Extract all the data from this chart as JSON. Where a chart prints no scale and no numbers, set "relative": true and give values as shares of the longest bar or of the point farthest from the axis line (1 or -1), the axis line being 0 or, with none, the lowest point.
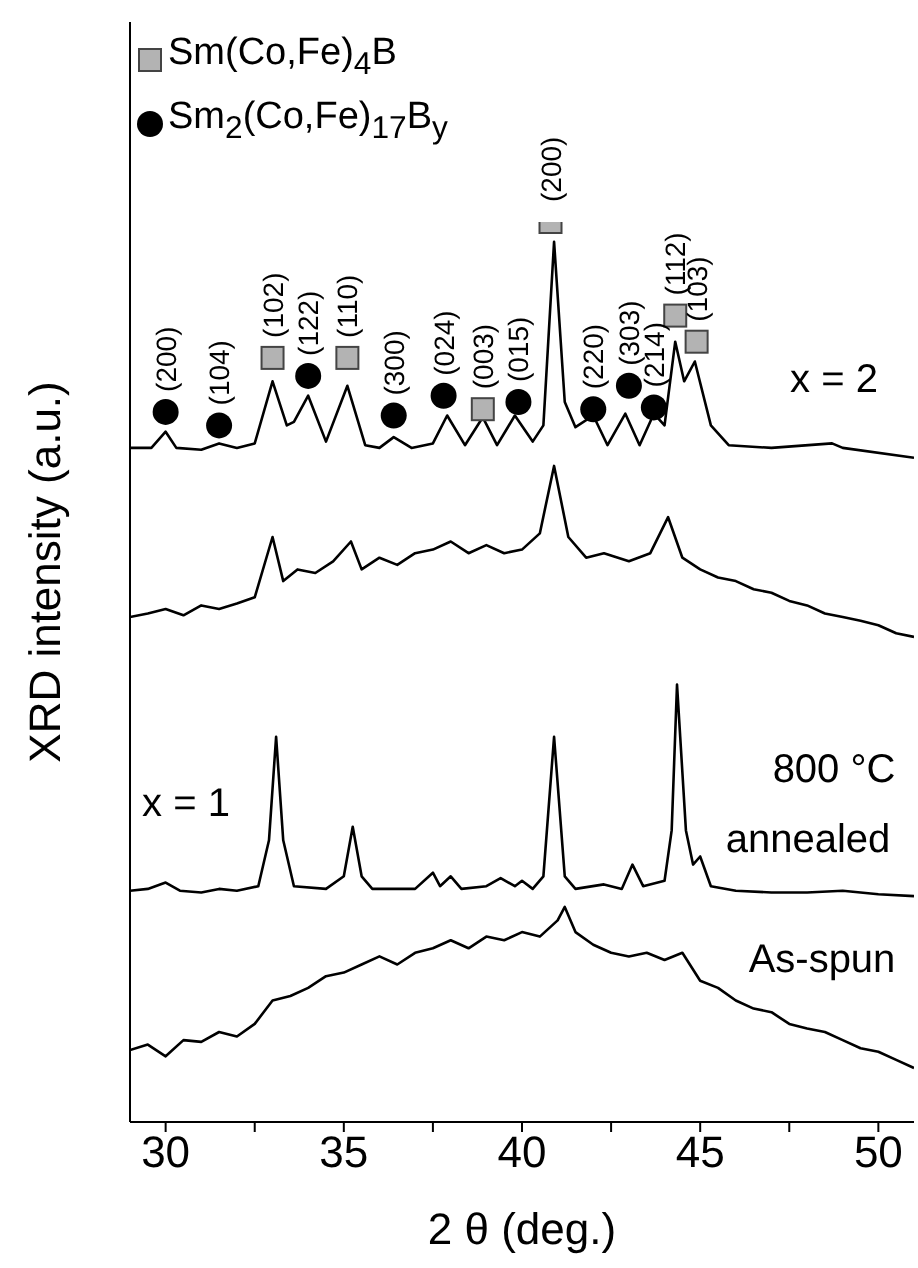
{
  "chart_data": {
    "type": "line",
    "relative": true,
    "xlabel": "2 θ (deg.)",
    "ylabel": "XRD intensity (a.u.)",
    "xlim": [
      29,
      51
    ],
    "xticks": [
      30,
      {
        "value": 32.5,
        "label": null
      },
      35,
      {
        "value": 37.5,
        "label": null
      },
      40,
      {
        "value": 42.5,
        "label": null
      },
      45,
      {
        "value": 47.5,
        "label": null
      },
      50
    ],
    "tick_labels": "x",
    "legend": "top left",
    "series": [
      {
        "color": "#000000",
        "x": [
          29,
          29.6,
          30,
          30.3,
          31,
          31.5,
          32,
          32.5,
          33,
          33.4,
          33.6,
          34,
          34.5,
          35.1,
          35.6,
          36,
          36.4,
          36.9,
          37.5,
          37.9,
          38.4,
          38.9,
          39.3,
          39.8,
          40.3,
          40.6,
          40.9,
          41.2,
          41.5,
          42,
          42.4,
          42.9,
          43.3,
          43.7,
          44,
          44.3,
          44.55,
          44.85,
          45.3,
          45.8,
          47,
          48.7,
          49,
          51
        ],
        "values": [
          0.749,
          0.749,
          0.767,
          0.749,
          0.747,
          0.754,
          0.749,
          0.754,
          0.823,
          0.774,
          0.778,
          0.807,
          0.756,
          0.818,
          0.752,
          0.749,
          0.761,
          0.749,
          0.754,
          0.785,
          0.752,
          0.783,
          0.752,
          0.785,
          0.756,
          0.774,
          0.978,
          0.8,
          0.772,
          0.785,
          0.752,
          0.787,
          0.752,
          0.787,
          0.774,
          0.867,
          0.823,
          0.845,
          0.774,
          0.752,
          0.749,
          0.754,
          0.749,
          0.738
        ]
      },
      {
        "color": "#000000",
        "x": [
          29,
          29.5,
          30,
          30.5,
          31,
          31.5,
          32,
          32.5,
          33,
          33.3,
          33.7,
          34.2,
          34.7,
          35.2,
          35.5,
          36,
          36.5,
          37,
          37.5,
          38,
          38.5,
          39,
          39.5,
          40,
          40.5,
          40.9,
          41.3,
          41.8,
          42.3,
          43,
          43.6,
          44.1,
          44.5,
          45,
          45.5,
          46,
          46.5,
          47,
          47.5,
          48,
          48.5,
          49,
          49.5,
          50,
          50.5,
          51
        ],
        "values": [
          0.561,
          0.565,
          0.57,
          0.563,
          0.574,
          0.57,
          0.576,
          0.583,
          0.65,
          0.601,
          0.614,
          0.61,
          0.623,
          0.645,
          0.614,
          0.627,
          0.619,
          0.632,
          0.636,
          0.645,
          0.632,
          0.641,
          0.632,
          0.636,
          0.654,
          0.729,
          0.65,
          0.627,
          0.632,
          0.623,
          0.632,
          0.672,
          0.627,
          0.614,
          0.605,
          0.601,
          0.592,
          0.588,
          0.579,
          0.574,
          0.565,
          0.561,
          0.557,
          0.552,
          0.543,
          0.539
        ]
      },
      {
        "color": "#000000",
        "x": [
          29,
          29.5,
          30,
          30.4,
          31,
          31.5,
          32,
          32.6,
          32.9,
          33.1,
          33.3,
          33.6,
          34.5,
          35,
          35.25,
          35.5,
          35.8,
          37,
          37.5,
          37.7,
          38,
          38.3,
          39,
          39.4,
          39.8,
          40,
          40.3,
          40.6,
          40.9,
          41.2,
          41.5,
          42.3,
          42.8,
          43.1,
          43.4,
          44,
          44.2,
          44.35,
          44.6,
          44.8,
          45,
          45.3,
          46,
          47,
          48,
          49,
          50,
          51
        ],
        "values": [
          0.257,
          0.259,
          0.266,
          0.257,
          0.255,
          0.259,
          0.257,
          0.262,
          0.313,
          0.428,
          0.313,
          0.262,
          0.259,
          0.273,
          0.328,
          0.273,
          0.259,
          0.259,
          0.277,
          0.262,
          0.273,
          0.259,
          0.262,
          0.271,
          0.262,
          0.268,
          0.259,
          0.273,
          0.428,
          0.273,
          0.259,
          0.264,
          0.259,
          0.286,
          0.262,
          0.268,
          0.324,
          0.486,
          0.324,
          0.286,
          0.295,
          0.262,
          0.257,
          0.255,
          0.255,
          0.257,
          0.253,
          0.251
        ]
      },
      {
        "color": "#000000",
        "x": [
          29,
          29.5,
          30,
          30.5,
          31,
          31.5,
          32,
          32.5,
          33,
          33.5,
          34,
          34.5,
          35,
          35.5,
          36,
          36.5,
          37,
          37.5,
          38,
          38.5,
          39,
          39.5,
          40,
          40.5,
          41,
          41.2,
          41.5,
          42,
          42.5,
          43,
          43.5,
          44,
          44.5,
          45,
          45.5,
          46,
          46.5,
          47,
          47.5,
          48,
          48.5,
          49,
          49.5,
          50,
          50.5,
          51
        ],
        "values": [
          0.08,
          0.086,
          0.073,
          0.091,
          0.089,
          0.1,
          0.095,
          0.109,
          0.135,
          0.14,
          0.149,
          0.162,
          0.166,
          0.175,
          0.184,
          0.175,
          0.188,
          0.193,
          0.202,
          0.193,
          0.206,
          0.202,
          0.211,
          0.206,
          0.224,
          0.239,
          0.211,
          0.197,
          0.188,
          0.184,
          0.188,
          0.18,
          0.188,
          0.157,
          0.149,
          0.135,
          0.126,
          0.122,
          0.109,
          0.104,
          0.1,
          0.091,
          0.082,
          0.078,
          0.069,
          0.06
        ]
      },
      {
        "type": "scatter",
        "name": "Sm(Co,Fe)$_{4}$B",
        "color": "#b3b3b3",
        "marker": "square",
        "x": [
          33.0,
          35.1,
          38.9,
          40.8,
          44.3,
          44.9
        ],
        "values": [
          0.849,
          0.849,
          0.792,
          1,
          0.896,
          0.867
        ]
      },
      {
        "type": "scatter",
        "name": "Sm$_{2}$(Co,Fe)$_{17}$B$_{y}$",
        "color": "#000000",
        "marker": "circle",
        "x": [
          30.0,
          31.5,
          34.0,
          36.4,
          37.8,
          39.9,
          42.0,
          43.0,
          43.7
        ],
        "values": [
          0.789,
          0.774,
          0.829,
          0.785,
          0.807,
          0.8,
          0.792,
          0.818,
          0.794
        ]
      }
    ],
    "annotations": [
      {
        "text": "(102)",
        "x": 33.0,
        "y": 0.849
      },
      {
        "text": "(110)",
        "x": 35.1,
        "y": 0.849
      },
      {
        "text": "(003)",
        "x": 38.9,
        "y": 0.792
      },
      {
        "text": "(200)",
        "x": 40.8,
        "y": 1
      },
      {
        "text": "(112)",
        "x": 44.3,
        "y": 0.896
      },
      {
        "text": "(103)",
        "x": 44.9,
        "y": 0.867
      },
      {
        "text": "(200)",
        "x": 30.0,
        "y": 0.789
      },
      {
        "text": "(104)",
        "x": 31.5,
        "y": 0.774
      },
      {
        "text": "(122)",
        "x": 34.0,
        "y": 0.829
      },
      {
        "text": "(300)",
        "x": 36.4,
        "y": 0.785
      },
      {
        "text": "(024)",
        "x": 37.8,
        "y": 0.807
      },
      {
        "text": "(015)",
        "x": 39.9,
        "y": 0.8
      },
      {
        "text": "(220)",
        "x": 42.0,
        "y": 0.792
      },
      {
        "text": "(303)",
        "x": 43.0,
        "y": 0.818
      },
      {
        "text": "(214)",
        "x": 43.7,
        "y": 0.794
      },
      "x = 2",
      "x = 1",
      "800 °C",
      "annealed",
      "As-spun"
    ]
  }
}
